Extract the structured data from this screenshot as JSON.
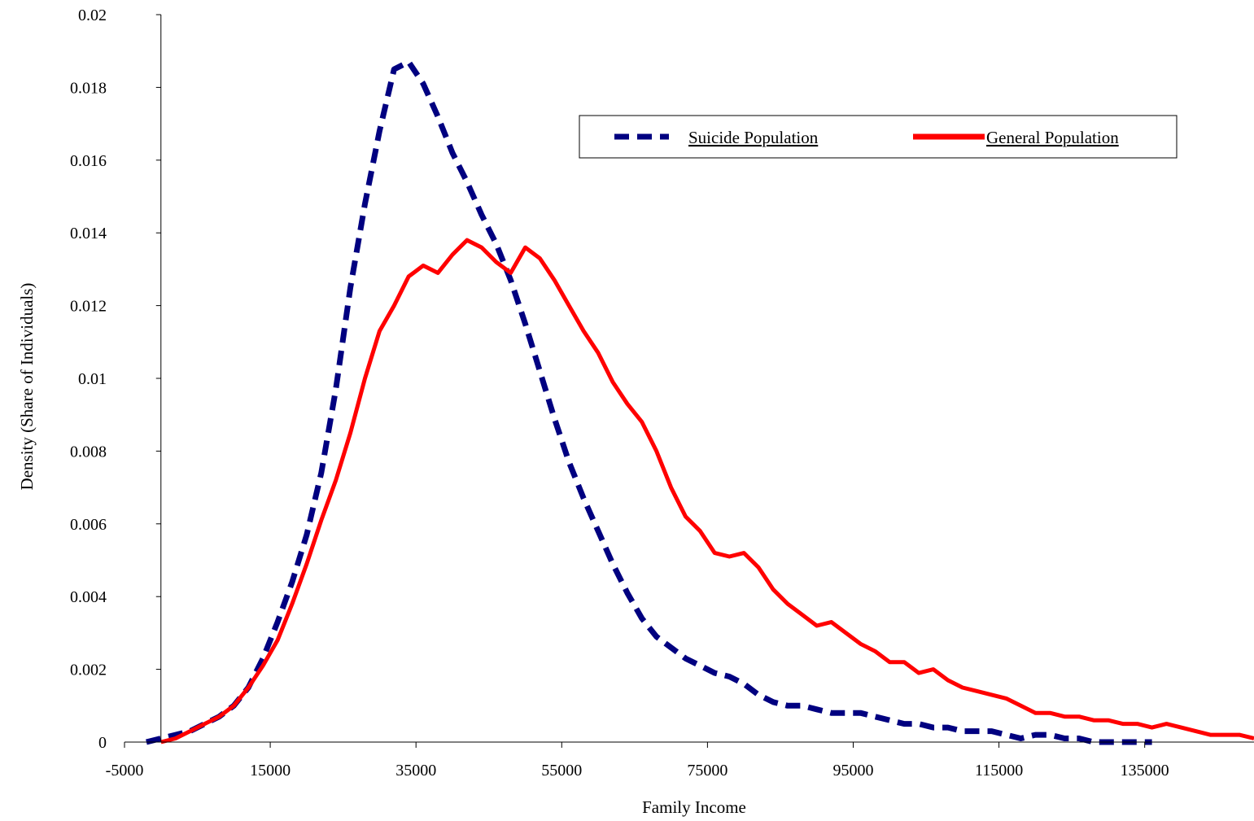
{
  "chart_data": {
    "type": "line",
    "title": "",
    "xlabel": "Family Income",
    "ylabel": "Density (Share of Individuals)",
    "xlim": [
      -5000,
      150000
    ],
    "ylim": [
      0,
      0.02
    ],
    "x_ticks": [
      -5000,
      15000,
      35000,
      55000,
      75000,
      95000,
      115000,
      135000
    ],
    "x_tick_labels": [
      "-5000",
      "15000",
      "35000",
      "55000",
      "75000",
      "95000",
      "115000",
      "135000"
    ],
    "y_ticks": [
      0,
      0.002,
      0.004,
      0.006,
      0.008,
      0.01,
      0.012,
      0.014,
      0.016,
      0.018,
      0.02
    ],
    "y_tick_labels": [
      "0",
      "0.002",
      "0.004",
      "0.006",
      "0.008",
      "0.01",
      "0.012",
      "0.014",
      "0.016",
      "0.018",
      "0.02"
    ],
    "y_axis_at_x": 0,
    "grid": false,
    "legend_position": "top-right",
    "series": [
      {
        "name": "Suicide Population",
        "color": "#000080",
        "style": "dashed",
        "points": [
          [
            -2000,
            0
          ],
          [
            0,
            0.0001
          ],
          [
            2000,
            0.0002
          ],
          [
            4000,
            0.0003
          ],
          [
            6000,
            0.0005
          ],
          [
            8000,
            0.0007
          ],
          [
            10000,
            0.001
          ],
          [
            12000,
            0.0015
          ],
          [
            14000,
            0.0023
          ],
          [
            16000,
            0.0033
          ],
          [
            18000,
            0.0044
          ],
          [
            20000,
            0.0057
          ],
          [
            22000,
            0.0074
          ],
          [
            24000,
            0.0097
          ],
          [
            26000,
            0.0125
          ],
          [
            28000,
            0.0148
          ],
          [
            30000,
            0.0168
          ],
          [
            32000,
            0.0185
          ],
          [
            34000,
            0.0187
          ],
          [
            36000,
            0.0181
          ],
          [
            38000,
            0.0172
          ],
          [
            40000,
            0.0162
          ],
          [
            42000,
            0.0154
          ],
          [
            44000,
            0.0145
          ],
          [
            46000,
            0.0137
          ],
          [
            48000,
            0.0127
          ],
          [
            50000,
            0.0115
          ],
          [
            52000,
            0.0102
          ],
          [
            54000,
            0.0089
          ],
          [
            56000,
            0.0077
          ],
          [
            58000,
            0.0067
          ],
          [
            60000,
            0.0058
          ],
          [
            62000,
            0.0049
          ],
          [
            64000,
            0.0041
          ],
          [
            66000,
            0.0034
          ],
          [
            68000,
            0.0029
          ],
          [
            70000,
            0.0026
          ],
          [
            72000,
            0.0023
          ],
          [
            74000,
            0.0021
          ],
          [
            76000,
            0.0019
          ],
          [
            78000,
            0.0018
          ],
          [
            80000,
            0.0016
          ],
          [
            82000,
            0.0013
          ],
          [
            84000,
            0.0011
          ],
          [
            86000,
            0.001
          ],
          [
            88000,
            0.001
          ],
          [
            90000,
            0.0009
          ],
          [
            92000,
            0.0008
          ],
          [
            94000,
            0.0008
          ],
          [
            96000,
            0.0008
          ],
          [
            98000,
            0.0007
          ],
          [
            100000,
            0.0006
          ],
          [
            102000,
            0.0005
          ],
          [
            104000,
            0.0005
          ],
          [
            106000,
            0.0004
          ],
          [
            108000,
            0.0004
          ],
          [
            110000,
            0.0003
          ],
          [
            112000,
            0.0003
          ],
          [
            114000,
            0.0003
          ],
          [
            116000,
            0.0002
          ],
          [
            118000,
            0.0001
          ],
          [
            120000,
            0.0002
          ],
          [
            122000,
            0.0002
          ],
          [
            124000,
            0.0001
          ],
          [
            126000,
            0.0001
          ],
          [
            128000,
            0
          ],
          [
            130000,
            0
          ],
          [
            132000,
            0
          ],
          [
            134000,
            0
          ],
          [
            136000,
            0
          ]
        ]
      },
      {
        "name": "General Population",
        "color": "#ff0000",
        "style": "solid",
        "points": [
          [
            0,
            0
          ],
          [
            2000,
            0.0001
          ],
          [
            4000,
            0.0003
          ],
          [
            6000,
            0.0005
          ],
          [
            8000,
            0.0007
          ],
          [
            10000,
            0.001
          ],
          [
            12000,
            0.0015
          ],
          [
            14000,
            0.0021
          ],
          [
            16000,
            0.0028
          ],
          [
            18000,
            0.0038
          ],
          [
            20000,
            0.0049
          ],
          [
            22000,
            0.0061
          ],
          [
            24000,
            0.0072
          ],
          [
            26000,
            0.0085
          ],
          [
            28000,
            0.01
          ],
          [
            30000,
            0.0113
          ],
          [
            32000,
            0.012
          ],
          [
            34000,
            0.0128
          ],
          [
            36000,
            0.0131
          ],
          [
            38000,
            0.0129
          ],
          [
            40000,
            0.0134
          ],
          [
            42000,
            0.0138
          ],
          [
            44000,
            0.0136
          ],
          [
            46000,
            0.0132
          ],
          [
            48000,
            0.0129
          ],
          [
            50000,
            0.0136
          ],
          [
            52000,
            0.0133
          ],
          [
            54000,
            0.0127
          ],
          [
            56000,
            0.012
          ],
          [
            58000,
            0.0113
          ],
          [
            60000,
            0.0107
          ],
          [
            62000,
            0.0099
          ],
          [
            64000,
            0.0093
          ],
          [
            66000,
            0.0088
          ],
          [
            68000,
            0.008
          ],
          [
            70000,
            0.007
          ],
          [
            72000,
            0.0062
          ],
          [
            74000,
            0.0058
          ],
          [
            76000,
            0.0052
          ],
          [
            78000,
            0.0051
          ],
          [
            80000,
            0.0052
          ],
          [
            82000,
            0.0048
          ],
          [
            84000,
            0.0042
          ],
          [
            86000,
            0.0038
          ],
          [
            88000,
            0.0035
          ],
          [
            90000,
            0.0032
          ],
          [
            92000,
            0.0033
          ],
          [
            94000,
            0.003
          ],
          [
            96000,
            0.0027
          ],
          [
            98000,
            0.0025
          ],
          [
            100000,
            0.0022
          ],
          [
            102000,
            0.0022
          ],
          [
            104000,
            0.0019
          ],
          [
            106000,
            0.002
          ],
          [
            108000,
            0.0017
          ],
          [
            110000,
            0.0015
          ],
          [
            112000,
            0.0014
          ],
          [
            114000,
            0.0013
          ],
          [
            116000,
            0.0012
          ],
          [
            118000,
            0.001
          ],
          [
            120000,
            0.0008
          ],
          [
            122000,
            0.0008
          ],
          [
            124000,
            0.0007
          ],
          [
            126000,
            0.0007
          ],
          [
            128000,
            0.0006
          ],
          [
            130000,
            0.0006
          ],
          [
            132000,
            0.0005
          ],
          [
            134000,
            0.0005
          ],
          [
            136000,
            0.0004
          ],
          [
            138000,
            0.0005
          ],
          [
            140000,
            0.0004
          ],
          [
            142000,
            0.0003
          ],
          [
            144000,
            0.0002
          ],
          [
            146000,
            0.0002
          ],
          [
            148000,
            0.0002
          ],
          [
            150000,
            0.0001
          ]
        ]
      }
    ]
  }
}
